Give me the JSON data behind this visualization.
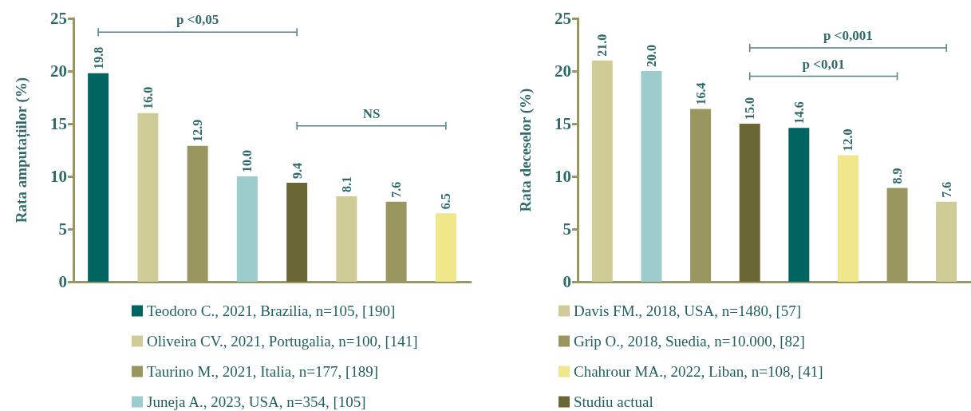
{
  "chart_data": [
    {
      "type": "bar",
      "ylabel": "Rata amputațiilor (%)",
      "categories": [
        null,
        null,
        null,
        null,
        null,
        null,
        null,
        null
      ],
      "stacked": true,
      "ylim": [
        0,
        25
      ],
      "yticks": [
        0,
        5,
        10,
        15,
        20,
        25
      ],
      "legend": "bottom",
      "annotations": [
        "p <0,05",
        "NS"
      ],
      "series": [
        {
          "name": "Teodoro C., 2021, Brazilia, n=105, [190]",
          "color": "#006461",
          "values": [
            19.8,
            null,
            null,
            null,
            null,
            null,
            null,
            null
          ],
          "value_labels": [
            "19.8",
            null,
            null,
            null,
            null,
            null,
            null,
            null
          ]
        },
        {
          "name": "Oliveira CV., 2021, Portugalia, n=100, [141]",
          "color": "#cfcc98",
          "values": [
            null,
            16.0,
            null,
            null,
            null,
            null,
            null,
            null
          ],
          "value_labels": [
            null,
            "16.0",
            null,
            null,
            null,
            null,
            null,
            null
          ]
        },
        {
          "name": "Taurino M., 2021, Italia, n=177, [189]",
          "color": "#9a9660",
          "values": [
            null,
            null,
            12.9,
            null,
            null,
            null,
            null,
            null
          ],
          "value_labels": [
            null,
            null,
            "12.9",
            null,
            null,
            null,
            null,
            null
          ]
        },
        {
          "name": "Juneja A., 2023, USA, n=354, [105]",
          "color": "#9dcccc",
          "values": [
            null,
            null,
            null,
            10.0,
            null,
            null,
            null,
            null
          ],
          "value_labels": [
            null,
            null,
            null,
            "10.0",
            null,
            null,
            null,
            null
          ]
        },
        {
          "name": "Davis FM., 2018, USA, n=1480, [57]",
          "color": "#cfcc98",
          "values": [
            null,
            null,
            null,
            null,
            null,
            8.1,
            null,
            null
          ],
          "value_labels": [
            null,
            null,
            null,
            null,
            null,
            "8.1",
            null,
            null
          ]
        },
        {
          "name": "Grip O., 2018, Suedia, n=10.000, [82]",
          "color": "#9a9660",
          "values": [
            null,
            null,
            null,
            null,
            null,
            null,
            7.6,
            null
          ],
          "value_labels": [
            null,
            null,
            null,
            null,
            null,
            null,
            "7.6",
            null
          ]
        },
        {
          "name": "Chahrour MA., 2022, Liban, n=108, [41]",
          "color": "#f0e68c",
          "values": [
            null,
            null,
            null,
            null,
            null,
            null,
            null,
            6.5
          ],
          "value_labels": [
            null,
            null,
            null,
            null,
            null,
            null,
            null,
            "6.5"
          ]
        },
        {
          "name": "Studiu actual",
          "color": "#6b6735",
          "values": [
            null,
            null,
            null,
            null,
            9.4,
            null,
            null,
            null
          ],
          "value_labels": [
            null,
            null,
            null,
            null,
            "9.4",
            null,
            null,
            null
          ]
        }
      ]
    },
    {
      "type": "bar",
      "ylabel": "Rata deceselor (%)",
      "categories": [
        null,
        null,
        null,
        null,
        null,
        null,
        null,
        null
      ],
      "stacked": true,
      "ylim": [
        0,
        25
      ],
      "yticks": [
        0,
        5,
        10,
        15,
        20,
        25
      ],
      "annotations": [
        "p <0,001",
        "p <0,01"
      ],
      "series": [
        {
          "color": "#006461",
          "values": [
            null,
            null,
            null,
            null,
            14.6,
            null,
            null,
            null
          ],
          "value_labels": [
            null,
            null,
            null,
            null,
            "14.6",
            null,
            null,
            null
          ]
        },
        {
          "color": "#cfcc98",
          "values": [
            21.0,
            null,
            null,
            null,
            null,
            null,
            null,
            null
          ],
          "value_labels": [
            "21.0",
            null,
            null,
            null,
            null,
            null,
            null,
            null
          ]
        },
        {
          "color": "#9a9660",
          "values": [
            null,
            null,
            16.4,
            null,
            null,
            null,
            null,
            null
          ],
          "value_labels": [
            null,
            null,
            "16.4",
            null,
            null,
            null,
            null,
            null
          ]
        },
        {
          "color": "#9dcccc",
          "values": [
            null,
            20.0,
            null,
            null,
            null,
            null,
            null,
            null
          ],
          "value_labels": [
            null,
            "20.0",
            null,
            null,
            null,
            null,
            null,
            null
          ]
        },
        {
          "color": "#cfcc98",
          "values": [
            null,
            null,
            null,
            null,
            null,
            null,
            null,
            7.6
          ],
          "value_labels": [
            null,
            null,
            null,
            null,
            null,
            null,
            null,
            "7.6"
          ]
        },
        {
          "color": "#9a9660",
          "values": [
            null,
            null,
            null,
            null,
            null,
            null,
            8.9,
            null
          ],
          "value_labels": [
            null,
            null,
            null,
            null,
            null,
            null,
            "8.9",
            null
          ]
        },
        {
          "color": "#f0e68c",
          "values": [
            null,
            null,
            null,
            null,
            null,
            12.0,
            null,
            null
          ],
          "value_labels": [
            null,
            null,
            null,
            null,
            null,
            "12.0",
            null,
            null
          ]
        },
        {
          "color": "#6b6735",
          "values": [
            null,
            null,
            null,
            15.0,
            null,
            null,
            null,
            null
          ],
          "value_labels": [
            null,
            null,
            null,
            "15.0",
            null,
            null,
            null,
            null
          ]
        }
      ]
    }
  ]
}
